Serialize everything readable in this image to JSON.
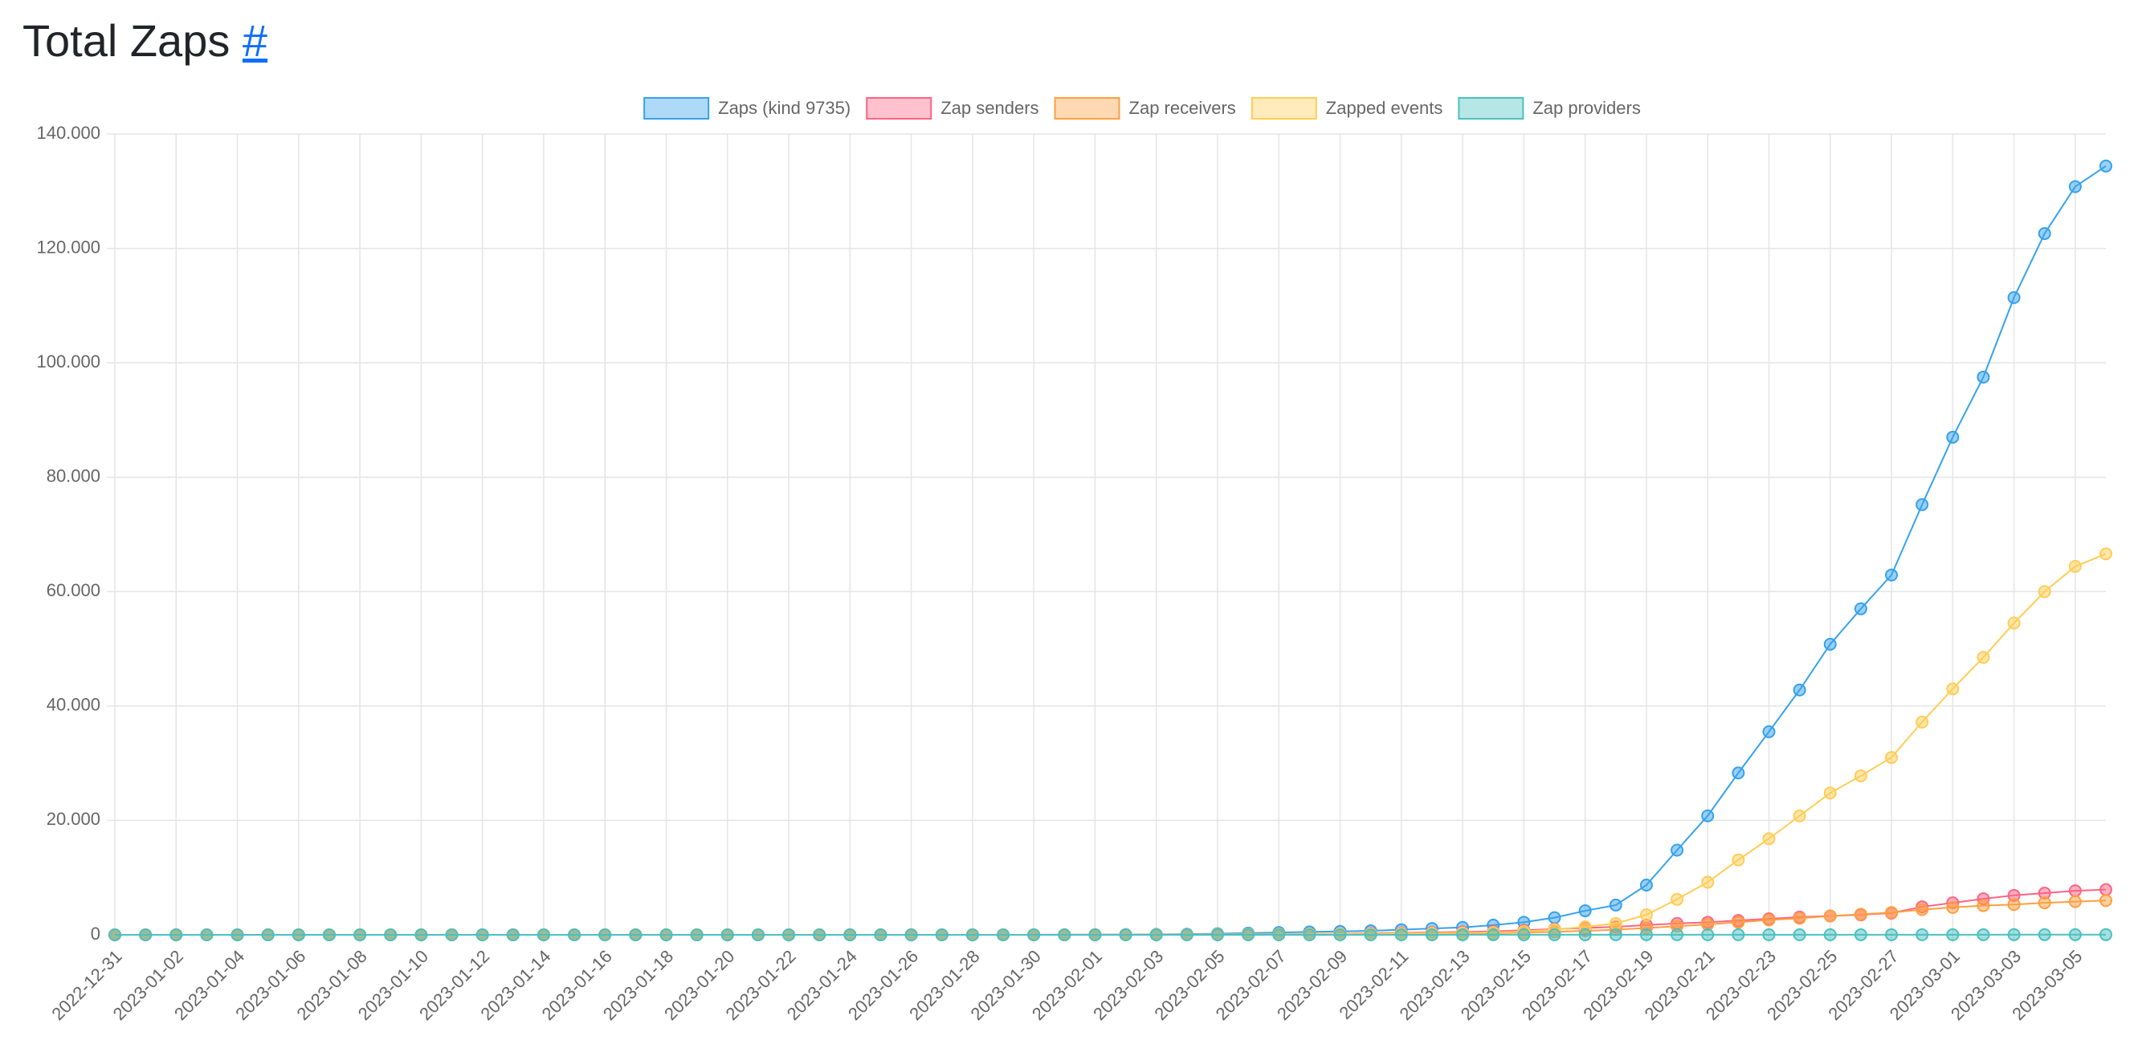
{
  "chart_data": {
    "type": "line",
    "title": "Total Zaps",
    "title_link": "#",
    "categories": [
      "2022-12-31",
      null,
      "2023-01-02",
      null,
      "2023-01-04",
      null,
      "2023-01-06",
      null,
      "2023-01-08",
      null,
      "2023-01-10",
      null,
      "2023-01-12",
      null,
      "2023-01-14",
      null,
      "2023-01-16",
      null,
      "2023-01-18",
      null,
      "2023-01-20",
      null,
      "2023-01-22",
      null,
      "2023-01-24",
      null,
      "2023-01-26",
      null,
      "2023-01-28",
      null,
      "2023-01-30",
      null,
      "2023-02-01",
      null,
      "2023-02-03",
      null,
      "2023-02-05",
      null,
      "2023-02-07",
      null,
      "2023-02-09",
      null,
      "2023-02-11",
      null,
      "2023-02-13",
      null,
      "2023-02-15",
      null,
      "2023-02-17",
      null,
      "2023-02-19",
      null,
      "2023-02-21",
      null,
      "2023-02-23",
      null,
      "2023-02-25",
      null,
      "2023-02-27",
      null,
      "2023-03-01",
      null,
      "2023-03-03",
      null,
      "2023-03-05",
      null
    ],
    "series": [
      {
        "name": "Zaps (kind 9735)",
        "color": "#36a2eb",
        "values": [
          0,
          0,
          0,
          0,
          0,
          0,
          0,
          0,
          0,
          0,
          0,
          0,
          0,
          0,
          0,
          0,
          0,
          0,
          0,
          0,
          0,
          0,
          0,
          0,
          0,
          0,
          0,
          0,
          0,
          0,
          10,
          20,
          30,
          50,
          80,
          120,
          200,
          300,
          400,
          500,
          600,
          700,
          900,
          1100,
          1300,
          1700,
          2200,
          3000,
          4200,
          5200,
          8700,
          14800,
          20800,
          28300,
          35500,
          42800,
          50800,
          57000,
          62900,
          75200,
          87000,
          97500,
          111400,
          122600,
          130800,
          134400
        ]
      },
      {
        "name": "Zap senders",
        "color": "#ff6384",
        "values": [
          0,
          0,
          0,
          0,
          0,
          0,
          0,
          0,
          0,
          0,
          0,
          0,
          0,
          0,
          0,
          0,
          0,
          0,
          0,
          0,
          0,
          0,
          0,
          0,
          0,
          0,
          0,
          0,
          0,
          0,
          5,
          10,
          15,
          20,
          30,
          40,
          60,
          80,
          110,
          150,
          200,
          280,
          350,
          420,
          500,
          600,
          800,
          1000,
          1200,
          1400,
          1700,
          2000,
          2200,
          2500,
          2800,
          3100,
          3300,
          3500,
          3800,
          4900,
          5600,
          6300,
          6900,
          7300,
          7700,
          7900
        ]
      },
      {
        "name": "Zap receivers",
        "color": "#ff9f40",
        "values": [
          0,
          0,
          0,
          0,
          0,
          0,
          0,
          0,
          0,
          0,
          0,
          0,
          0,
          0,
          0,
          0,
          0,
          0,
          0,
          0,
          0,
          0,
          0,
          0,
          0,
          0,
          0,
          0,
          0,
          0,
          3,
          5,
          8,
          10,
          15,
          20,
          30,
          40,
          60,
          80,
          100,
          140,
          180,
          220,
          260,
          300,
          400,
          500,
          700,
          900,
          1200,
          1500,
          1800,
          2200,
          2600,
          2900,
          3300,
          3600,
          3900,
          4400,
          4800,
          5100,
          5300,
          5600,
          5800,
          6000
        ]
      },
      {
        "name": "Zapped events",
        "color": "#ffcd56",
        "values": [
          0,
          0,
          0,
          0,
          0,
          0,
          0,
          0,
          0,
          0,
          0,
          0,
          0,
          0,
          0,
          0,
          0,
          0,
          0,
          0,
          0,
          0,
          0,
          0,
          0,
          0,
          0,
          0,
          0,
          0,
          5,
          10,
          15,
          20,
          30,
          40,
          60,
          80,
          100,
          130,
          160,
          200,
          240,
          280,
          330,
          400,
          600,
          900,
          1400,
          2000,
          3500,
          6200,
          9200,
          13100,
          16800,
          20800,
          24800,
          27800,
          31000,
          37200,
          43000,
          48500,
          54500,
          60000,
          64400,
          66600
        ]
      },
      {
        "name": "Zap providers",
        "color": "#4bc0c0",
        "values": [
          0,
          0,
          0,
          0,
          0,
          0,
          0,
          0,
          0,
          0,
          0,
          0,
          0,
          0,
          0,
          0,
          0,
          0,
          0,
          0,
          0,
          0,
          0,
          0,
          0,
          0,
          0,
          0,
          0,
          0,
          1,
          1,
          2,
          2,
          3,
          3,
          4,
          4,
          5,
          5,
          6,
          6,
          7,
          8,
          9,
          10,
          11,
          12,
          13,
          14,
          15,
          16,
          17,
          18,
          19,
          20,
          21,
          22,
          23,
          24,
          25,
          26,
          27,
          28,
          29,
          30
        ]
      }
    ],
    "ylim": [
      0,
      140000
    ],
    "yticks": [
      0,
      {
        "value": 20000,
        "label": "20.000"
      },
      {
        "value": 40000,
        "label": "40.000"
      },
      {
        "value": 60000,
        "label": "60.000"
      },
      {
        "value": 80000,
        "label": "80.000"
      },
      {
        "value": 100000,
        "label": "100.000"
      },
      {
        "value": 120000,
        "label": "120.000"
      },
      {
        "value": 140000,
        "label": "140.000"
      }
    ],
    "grid": true,
    "legend": "top"
  }
}
